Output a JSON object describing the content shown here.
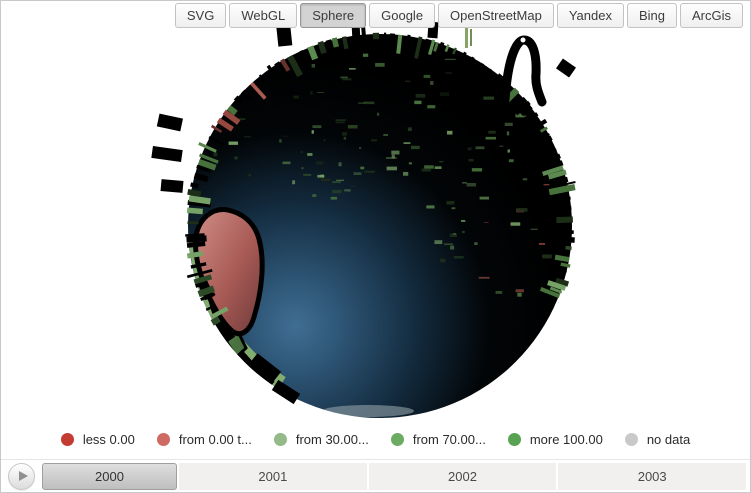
{
  "toolbar": {
    "buttons": [
      {
        "label": "SVG",
        "active": false
      },
      {
        "label": "WebGL",
        "active": false
      },
      {
        "label": "Sphere",
        "active": true
      },
      {
        "label": "Google",
        "active": false
      },
      {
        "label": "OpenStreetMap",
        "active": false
      },
      {
        "label": "Yandex",
        "active": false
      },
      {
        "label": "Bing",
        "active": false
      },
      {
        "label": "ArcGis",
        "active": false
      }
    ]
  },
  "globe": {
    "type": "sphere-map-with-3d-columns",
    "land_color": "#000000",
    "ocean_color": "#2b5170",
    "regions": [
      {
        "name": "south-america",
        "color": "#a85a55"
      },
      {
        "name": "west-coast-strip",
        "color": "#82ad6e"
      }
    ],
    "column_colors": {
      "positive": "#5d8a50",
      "negative": "#9a4d44"
    }
  },
  "legend": {
    "items": [
      {
        "label": "less 0.00",
        "color": "#c43b32"
      },
      {
        "label": "from 0.00 t...",
        "color": "#cd6b62"
      },
      {
        "label": "from 30.00...",
        "color": "#93ba88"
      },
      {
        "label": "from 70.00...",
        "color": "#6cab62"
      },
      {
        "label": "more 100.00",
        "color": "#58a351"
      },
      {
        "label": "no data",
        "color": "#c9c9c9"
      }
    ]
  },
  "timeline": {
    "years": [
      {
        "label": "2000",
        "selected": true
      },
      {
        "label": "2001",
        "selected": false
      },
      {
        "label": "2002",
        "selected": false
      },
      {
        "label": "2003",
        "selected": false
      }
    ]
  }
}
